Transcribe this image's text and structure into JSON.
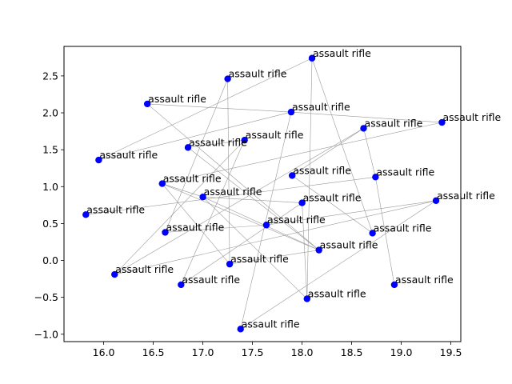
{
  "chart_data": {
    "type": "scatter",
    "title": "",
    "xlabel": "",
    "ylabel": "",
    "xlim": [
      15.6,
      19.6
    ],
    "ylim": [
      -1.1,
      2.9
    ],
    "xticks": [
      "16.0",
      "16.5",
      "17.0",
      "17.5",
      "18.0",
      "18.5",
      "19.0",
      "19.5"
    ],
    "yticks": [
      "−1.0",
      "−0.5",
      "0.0",
      "0.5",
      "1.0",
      "1.5",
      "2.0",
      "2.5"
    ],
    "xtick_values": [
      16.0,
      16.5,
      17.0,
      17.5,
      18.0,
      18.5,
      19.0,
      19.5
    ],
    "ytick_values": [
      -1.0,
      -0.5,
      0.0,
      0.5,
      1.0,
      1.5,
      2.0,
      2.5
    ],
    "grid": false,
    "marker_color": "#0000ff",
    "edge_color": "#999999",
    "points": [
      {
        "x": 18.1,
        "y": 2.74,
        "label": "assault rifle"
      },
      {
        "x": 17.25,
        "y": 2.46,
        "label": "assault rifle"
      },
      {
        "x": 16.44,
        "y": 2.12,
        "label": "assault rifle"
      },
      {
        "x": 17.89,
        "y": 2.01,
        "label": "assault rifle"
      },
      {
        "x": 19.41,
        "y": 1.87,
        "label": "assault rifle"
      },
      {
        "x": 18.62,
        "y": 1.79,
        "label": "assault rifle"
      },
      {
        "x": 17.42,
        "y": 1.63,
        "label": "assault rifle"
      },
      {
        "x": 16.85,
        "y": 1.53,
        "label": "assault rifle"
      },
      {
        "x": 15.95,
        "y": 1.36,
        "label": "assault rifle"
      },
      {
        "x": 17.9,
        "y": 1.15,
        "label": "assault rifle"
      },
      {
        "x": 18.74,
        "y": 1.13,
        "label": "assault rifle"
      },
      {
        "x": 16.59,
        "y": 1.04,
        "label": "assault rifle"
      },
      {
        "x": 17.0,
        "y": 0.86,
        "label": "assault rifle"
      },
      {
        "x": 19.35,
        "y": 0.81,
        "label": "assault rifle"
      },
      {
        "x": 18.0,
        "y": 0.78,
        "label": "assault rifle"
      },
      {
        "x": 15.82,
        "y": 0.62,
        "label": "assault rifle"
      },
      {
        "x": 17.64,
        "y": 0.48,
        "label": "assault rifle"
      },
      {
        "x": 16.62,
        "y": 0.38,
        "label": "assault rifle"
      },
      {
        "x": 18.71,
        "y": 0.37,
        "label": "assault rifle"
      },
      {
        "x": 18.17,
        "y": 0.14,
        "label": "assault rifle"
      },
      {
        "x": 17.27,
        "y": -0.05,
        "label": "assault rifle"
      },
      {
        "x": 16.11,
        "y": -0.19,
        "label": "assault rifle"
      },
      {
        "x": 16.78,
        "y": -0.33,
        "label": "assault rifle"
      },
      {
        "x": 18.93,
        "y": -0.33,
        "label": "assault rifle"
      },
      {
        "x": 18.05,
        "y": -0.52,
        "label": "assault rifle"
      },
      {
        "x": 17.38,
        "y": -0.93,
        "label": "assault rifle"
      }
    ],
    "edges": [
      [
        0,
        8
      ],
      [
        0,
        24
      ],
      [
        1,
        20
      ],
      [
        1,
        17
      ],
      [
        2,
        3
      ],
      [
        2,
        19
      ],
      [
        3,
        4
      ],
      [
        3,
        8
      ],
      [
        3,
        25
      ],
      [
        4,
        11
      ],
      [
        5,
        9
      ],
      [
        5,
        21
      ],
      [
        5,
        10
      ],
      [
        6,
        7
      ],
      [
        6,
        22
      ],
      [
        6,
        21
      ],
      [
        7,
        19
      ],
      [
        9,
        18
      ],
      [
        10,
        23
      ],
      [
        10,
        15
      ],
      [
        11,
        12
      ],
      [
        11,
        20
      ],
      [
        12,
        14
      ],
      [
        12,
        19
      ],
      [
        13,
        21
      ],
      [
        13,
        25
      ],
      [
        14,
        24
      ],
      [
        16,
        17
      ],
      [
        16,
        13
      ],
      [
        18,
        0
      ],
      [
        19,
        11
      ],
      [
        20,
        19
      ],
      [
        22,
        14
      ],
      [
        24,
        12
      ]
    ]
  }
}
